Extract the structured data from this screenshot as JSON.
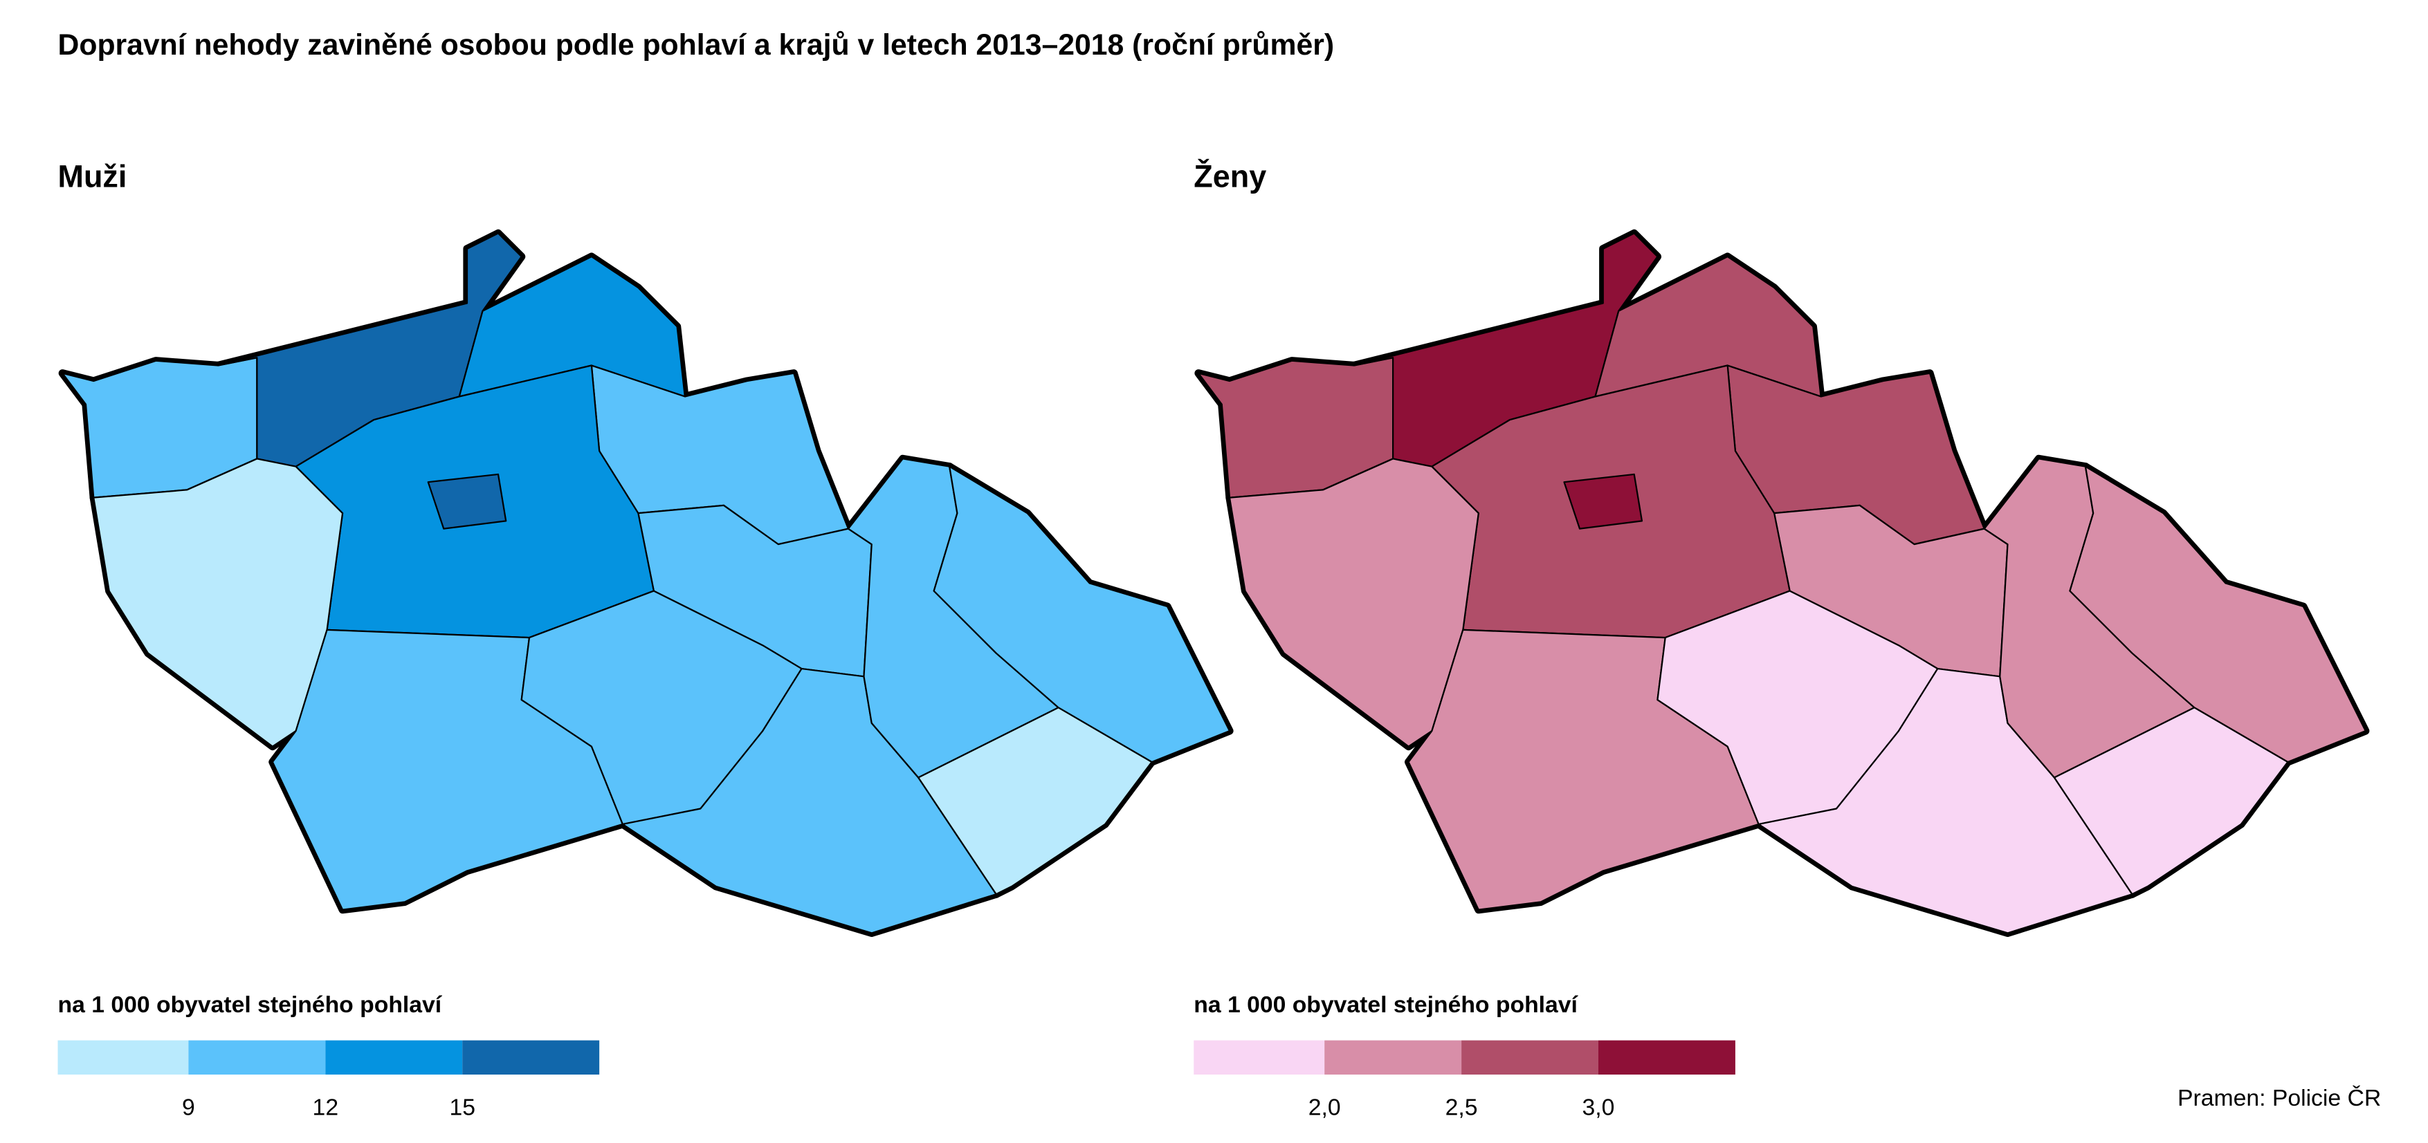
{
  "title": "Dopravní nehody zaviněné osobou podle pohlaví a krajů v letech 2013–2018 (roční průměr)",
  "panels": [
    {
      "title": "Muži",
      "legend": {
        "label": "na 1 000 obyvatel stejného pohlaví",
        "colors": [
          "#b9eafd",
          "#5bc2fb",
          "#0593e0",
          "#1167ab"
        ],
        "ticks": [
          9,
          12,
          15
        ]
      }
    },
    {
      "title": "Ženy",
      "legend": {
        "label": "na 1 000 obyvatel stejného pohlaví",
        "colors": [
          "#f9d6f4",
          "#d88ea8",
          "#b04e69",
          "#8e1037"
        ],
        "ticks": [
          {
            "value": 2,
            "label": "2,0"
          },
          {
            "value": 2.5,
            "label": "2,5"
          },
          {
            "value": 3,
            "label": "3,0"
          }
        ]
      }
    }
  ],
  "source": "Pramen: Policie ČR"
}
